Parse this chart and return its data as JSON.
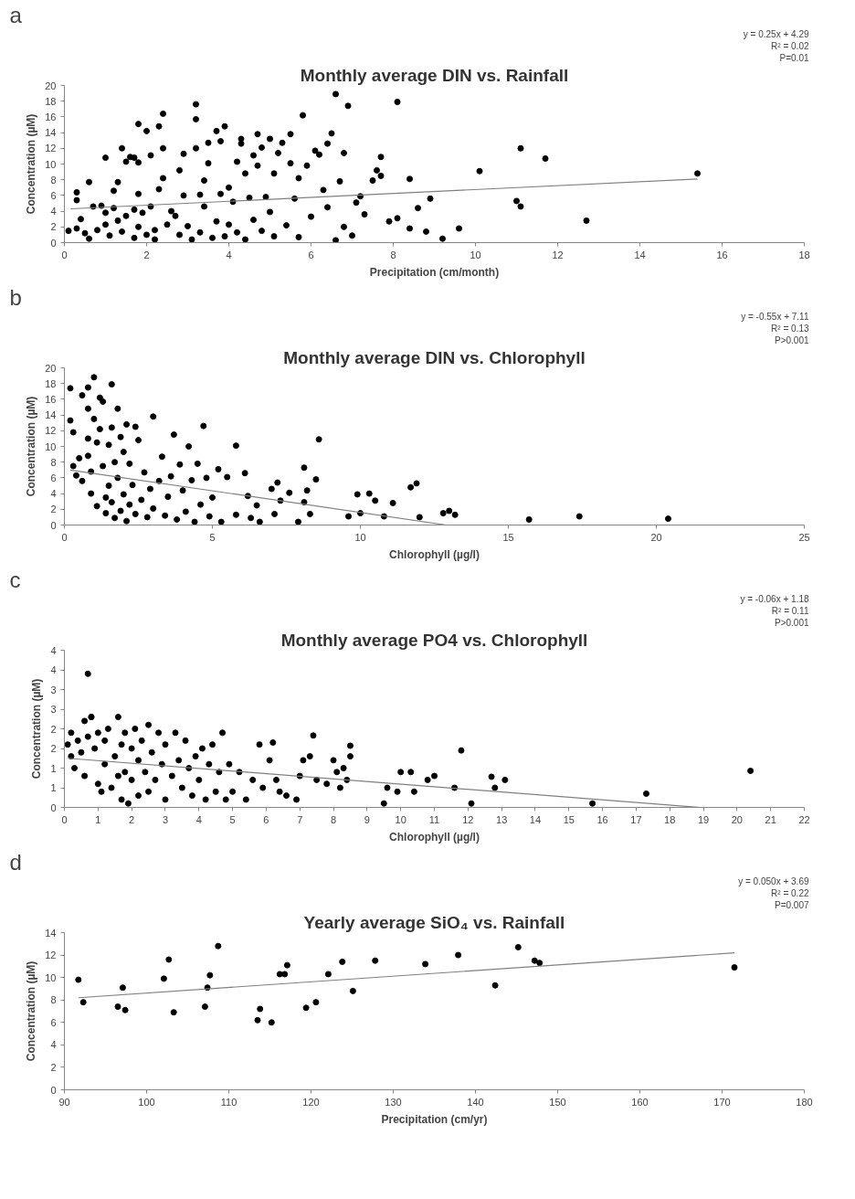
{
  "chart_data": [
    {
      "type": "scatter",
      "title": "Monthly average DIN vs. Rainfall",
      "xlabel": "Precipitation (cm/month)",
      "ylabel": "Concentration (µM)",
      "annotations": [
        "a",
        "y = 0.25x + 4.29",
        "R² = 0.02",
        "P=0.01"
      ],
      "xlim": [
        0,
        18
      ],
      "ylim": [
        0,
        20
      ],
      "xticks": [
        0,
        2,
        4,
        6,
        8,
        10,
        12,
        14,
        16,
        18
      ],
      "yticks": [
        0,
        2,
        4,
        6,
        8,
        10,
        12,
        14,
        16,
        18,
        20
      ],
      "grid": false,
      "series": [
        {
          "type": "scatter",
          "marker": "circle",
          "color": "#000000",
          "x": [
            0.1,
            0.3,
            0.3,
            0.4,
            0.3,
            0.5,
            0.6,
            0.6,
            0.7,
            0.8,
            0.9,
            1.0,
            1.0,
            1.0,
            1.1,
            1.2,
            1.2,
            1.3,
            1.3,
            1.4,
            1.4,
            1.5,
            1.5,
            1.6,
            1.7,
            1.7,
            1.7,
            1.8,
            1.8,
            1.8,
            1.8,
            1.9,
            2.0,
            2.0,
            2.1,
            2.1,
            2.2,
            2.2,
            2.3,
            2.3,
            2.4,
            2.4,
            2.4,
            2.5,
            2.6,
            2.7,
            2.8,
            2.8,
            2.9,
            2.9,
            3.0,
            3.1,
            3.2,
            3.2,
            3.2,
            3.3,
            3.3,
            3.4,
            3.4,
            3.5,
            3.5,
            3.6,
            3.7,
            3.7,
            3.8,
            3.8,
            3.9,
            3.9,
            4.0,
            4.0,
            4.1,
            4.2,
            4.2,
            4.3,
            4.3,
            4.4,
            4.4,
            4.5,
            4.6,
            4.6,
            4.7,
            4.7,
            4.8,
            4.8,
            4.9,
            5.0,
            5.0,
            5.1,
            5.1,
            5.2,
            5.3,
            5.4,
            5.5,
            5.5,
            5.6,
            5.7,
            5.7,
            5.8,
            5.9,
            6.0,
            6.1,
            6.2,
            6.3,
            6.4,
            6.4,
            6.5,
            6.6,
            6.6,
            6.7,
            6.8,
            6.8,
            6.9,
            7.0,
            7.1,
            7.2,
            7.3,
            7.5,
            7.6,
            7.7,
            7.7,
            7.9,
            8.1,
            8.1,
            8.4,
            8.4,
            8.6,
            8.8,
            8.9,
            9.2,
            9.6,
            10.1,
            11.0,
            11.1,
            11.1,
            11.7,
            12.7,
            15.4
          ],
          "values": [
            1.5,
            6.4,
            5.4,
            3.0,
            1.8,
            1.2,
            0.5,
            7.7,
            4.6,
            1.6,
            4.7,
            10.8,
            3.8,
            2.3,
            0.9,
            6.6,
            4.4,
            7.7,
            2.8,
            12.0,
            1.4,
            10.3,
            3.4,
            10.9,
            10.8,
            4.2,
            0.6,
            15.1,
            10.2,
            6.2,
            2.0,
            3.8,
            14.2,
            1.0,
            11.1,
            4.6,
            1.6,
            0.4,
            14.8,
            6.8,
            16.4,
            12.0,
            8.2,
            2.3,
            4.0,
            3.4,
            9.2,
            1.0,
            6.0,
            11.3,
            2.1,
            0.4,
            17.6,
            15.7,
            12.0,
            6.1,
            1.3,
            7.9,
            4.6,
            10.1,
            12.7,
            0.6,
            14.2,
            2.7,
            12.9,
            6.2,
            14.8,
            0.8,
            7.0,
            2.3,
            5.2,
            10.3,
            1.3,
            13.2,
            12.6,
            8.8,
            0.4,
            5.7,
            11.1,
            2.9,
            13.8,
            9.8,
            12.1,
            1.5,
            5.8,
            13.2,
            3.9,
            8.8,
            0.8,
            11.4,
            12.7,
            2.2,
            13.8,
            10.1,
            5.6,
            8.2,
            0.7,
            16.2,
            9.8,
            3.3,
            11.7,
            11.2,
            6.7,
            12.6,
            4.5,
            13.9,
            18.9,
            0.3,
            7.8,
            11.4,
            2.0,
            17.4,
            0.9,
            5.1,
            5.9,
            3.6,
            7.9,
            9.2,
            10.9,
            8.5,
            2.7,
            17.9,
            3.1,
            8.1,
            1.8,
            4.4,
            1.4,
            5.6,
            0.5,
            1.8,
            9.1,
            5.3,
            4.6,
            12.0,
            10.7,
            2.8,
            8.8
          ]
        },
        {
          "type": "line",
          "color": "#808080",
          "x": [
            0.15,
            15.4
          ],
          "values": [
            4.3,
            8.1
          ]
        }
      ]
    },
    {
      "type": "scatter",
      "title": "Monthly average DIN vs. Chlorophyll",
      "xlabel": "Chlorophyll (µg/l)",
      "ylabel": "Concentration (µM)",
      "annotations": [
        "b",
        "y = -0.55x + 7.11",
        "R² = 0.13",
        "P>0.001"
      ],
      "xlim": [
        0,
        25
      ],
      "ylim": [
        0,
        20
      ],
      "xticks": [
        0,
        5,
        10,
        15,
        20,
        25
      ],
      "yticks": [
        0,
        2,
        4,
        6,
        8,
        10,
        12,
        14,
        16,
        18,
        20
      ],
      "grid": false,
      "series": [
        {
          "type": "scatter",
          "marker": "circle",
          "color": "#000000",
          "x": [
            0.2,
            0.2,
            0.3,
            0.3,
            0.4,
            0.5,
            0.6,
            0.6,
            0.8,
            0.8,
            0.8,
            0.8,
            0.9,
            0.9,
            1.0,
            1.0,
            1.1,
            1.1,
            1.2,
            1.2,
            1.3,
            1.3,
            1.4,
            1.4,
            1.5,
            1.5,
            1.6,
            1.6,
            1.6,
            1.7,
            1.7,
            1.8,
            1.8,
            1.9,
            1.9,
            2.0,
            2.0,
            2.1,
            2.1,
            2.2,
            2.2,
            2.3,
            2.4,
            2.4,
            2.5,
            2.6,
            2.7,
            2.8,
            2.9,
            3.0,
            3.0,
            3.2,
            3.3,
            3.4,
            3.5,
            3.6,
            3.7,
            3.8,
            3.9,
            4.0,
            4.1,
            4.2,
            4.3,
            4.4,
            4.5,
            4.6,
            4.7,
            4.8,
            4.9,
            5.0,
            5.2,
            5.3,
            5.5,
            5.8,
            5.8,
            6.1,
            6.2,
            6.3,
            6.5,
            6.6,
            7.0,
            7.1,
            7.2,
            7.3,
            7.6,
            7.9,
            8.1,
            8.1,
            8.2,
            8.3,
            8.5,
            8.6,
            9.6,
            9.9,
            10.0,
            10.3,
            10.5,
            10.8,
            11.1,
            11.7,
            11.9,
            12.0,
            12.8,
            13.0,
            13.2,
            15.7,
            17.4,
            20.4
          ],
          "values": [
            17.4,
            13.3,
            11.8,
            7.5,
            6.3,
            8.5,
            16.5,
            5.6,
            17.5,
            14.8,
            11.0,
            8.8,
            6.8,
            4.0,
            18.8,
            13.5,
            10.5,
            2.4,
            16.2,
            12.2,
            15.7,
            7.5,
            3.5,
            1.5,
            10.2,
            5.0,
            17.9,
            12.4,
            2.9,
            8.0,
            0.9,
            14.8,
            6.0,
            11.2,
            1.8,
            9.3,
            3.9,
            12.8,
            0.5,
            7.8,
            2.6,
            5.1,
            12.5,
            1.4,
            10.8,
            3.2,
            6.7,
            1.0,
            4.6,
            13.8,
            2.1,
            5.6,
            8.7,
            1.2,
            3.6,
            6.2,
            11.5,
            0.7,
            7.7,
            4.4,
            1.7,
            10.0,
            5.7,
            0.4,
            7.8,
            2.6,
            12.6,
            6.0,
            1.1,
            3.5,
            7.1,
            0.4,
            6.1,
            10.1,
            1.3,
            6.6,
            3.7,
            0.9,
            2.5,
            0.4,
            4.6,
            1.4,
            5.4,
            3.1,
            4.1,
            0.4,
            7.3,
            2.9,
            4.4,
            1.4,
            5.8,
            10.9,
            1.1,
            3.9,
            1.5,
            4.0,
            3.1,
            1.1,
            2.8,
            4.8,
            5.3,
            1.0,
            1.5,
            1.8,
            1.3,
            0.7,
            1.1,
            0.8
          ]
        },
        {
          "type": "line",
          "color": "#808080",
          "x": [
            0.2,
            12.9
          ],
          "values": [
            7.0,
            0.0
          ]
        }
      ]
    },
    {
      "type": "scatter",
      "title": "Monthly average PO4 vs. Chlorophyll",
      "xlabel": "Chlorophyll (µg/l)",
      "ylabel": "Concentration (µM)",
      "annotations": [
        "c",
        "y = -0.06x + 1.18",
        "R² = 0.11",
        "P>0.001"
      ],
      "xlim": [
        0,
        22
      ],
      "ylim": [
        0,
        4
      ],
      "xticks": [
        0,
        1,
        2,
        3,
        4,
        5,
        6,
        7,
        8,
        9,
        10,
        11,
        12,
        13,
        14,
        15,
        16,
        17,
        18,
        19,
        20,
        21,
        22
      ],
      "yticks": [
        0,
        {
          "value": 0.5,
          "label": "1"
        },
        1,
        {
          "value": 1.5,
          "label": "2"
        },
        2,
        {
          "value": 2.5,
          "label": "3"
        },
        3,
        {
          "value": 3.5,
          "label": "4"
        },
        4
      ],
      "grid": false,
      "series": [
        {
          "type": "scatter",
          "marker": "circle",
          "color": "#000000",
          "x": [
            0.1,
            0.2,
            0.2,
            0.3,
            0.4,
            0.5,
            0.6,
            0.6,
            0.7,
            0.7,
            0.8,
            0.8,
            0.9,
            1.0,
            1.0,
            1.1,
            1.2,
            1.2,
            1.3,
            1.4,
            1.5,
            1.6,
            1.6,
            1.7,
            1.7,
            1.8,
            1.8,
            1.9,
            2.0,
            2.0,
            2.1,
            2.2,
            2.2,
            2.3,
            2.4,
            2.5,
            2.5,
            2.6,
            2.7,
            2.8,
            2.9,
            3.0,
            3.0,
            3.2,
            3.3,
            3.4,
            3.5,
            3.6,
            3.7,
            3.8,
            3.9,
            4.0,
            4.1,
            4.2,
            4.3,
            4.4,
            4.5,
            4.6,
            4.7,
            4.8,
            4.9,
            5.0,
            5.2,
            5.4,
            5.6,
            5.8,
            5.9,
            6.1,
            6.2,
            6.3,
            6.4,
            6.6,
            6.9,
            7.0,
            7.1,
            7.3,
            7.4,
            7.5,
            7.8,
            8.0,
            8.1,
            8.2,
            8.3,
            8.4,
            8.5,
            8.5,
            9.5,
            9.6,
            9.9,
            10.0,
            10.3,
            10.4,
            10.8,
            11.0,
            11.6,
            11.8,
            12.1,
            12.7,
            12.8,
            13.1,
            15.7,
            17.3,
            20.4
          ],
          "values": [
            1.6,
            1.3,
            1.9,
            1.0,
            1.7,
            1.4,
            2.2,
            0.8,
            3.4,
            1.8,
            2.3,
            2.3,
            1.5,
            1.9,
            0.6,
            0.4,
            1.7,
            1.1,
            2.0,
            0.5,
            1.3,
            2.3,
            0.8,
            1.6,
            0.2,
            1.9,
            0.9,
            0.1,
            1.5,
            0.7,
            2.0,
            1.2,
            0.3,
            1.7,
            0.9,
            2.1,
            0.4,
            1.4,
            0.7,
            1.9,
            1.1,
            0.2,
            1.6,
            0.8,
            1.9,
            1.2,
            0.5,
            1.7,
            1.0,
            0.3,
            1.3,
            0.7,
            1.5,
            0.2,
            1.1,
            1.6,
            0.4,
            0.9,
            1.9,
            0.2,
            1.1,
            0.4,
            0.9,
            0.2,
            0.7,
            1.6,
            0.5,
            1.2,
            1.65,
            0.7,
            0.4,
            0.3,
            0.2,
            0.8,
            1.2,
            1.3,
            1.83,
            0.7,
            0.6,
            1.2,
            0.9,
            0.5,
            1.0,
            0.7,
            1.57,
            1.3,
            0.1,
            0.5,
            0.4,
            0.9,
            0.9,
            0.4,
            0.7,
            0.8,
            0.5,
            1.45,
            0.1,
            0.78,
            0.5,
            0.7,
            0.1,
            0.35,
            0.93
          ]
        },
        {
          "type": "line",
          "color": "#808080",
          "x": [
            0.1,
            18.9
          ],
          "values": [
            1.25,
            0.0
          ]
        }
      ]
    },
    {
      "type": "scatter",
      "title": "Yearly average SiO₄ vs. Rainfall",
      "xlabel": "Precipitation (cm/yr)",
      "ylabel": "Concentration (µM)",
      "annotations": [
        "d",
        "y = 0.050x + 3.69",
        "R² = 0.22",
        "P=0.007"
      ],
      "xlim": [
        90,
        180
      ],
      "ylim": [
        0,
        14
      ],
      "xticks": [
        90,
        100,
        110,
        120,
        130,
        140,
        150,
        160,
        170,
        180
      ],
      "yticks": [
        0,
        2,
        4,
        6,
        8,
        10,
        12,
        14
      ],
      "grid": false,
      "series": [
        {
          "type": "scatter",
          "marker": "circle",
          "color": "#000000",
          "x": [
            91.7,
            92.3,
            96.5,
            97.1,
            97.4,
            102.1,
            102.7,
            103.3,
            107.1,
            107.4,
            107.7,
            108.7,
            113.5,
            113.8,
            115.2,
            116.2,
            116.8,
            117.1,
            119.4,
            120.6,
            122.1,
            123.8,
            125.1,
            127.8,
            133.9,
            137.9,
            142.4,
            145.2,
            147.2,
            147.8,
            171.5
          ],
          "values": [
            9.8,
            7.8,
            7.4,
            9.1,
            7.1,
            9.9,
            11.6,
            6.9,
            7.4,
            9.1,
            10.2,
            12.8,
            6.2,
            7.2,
            6.0,
            10.3,
            10.3,
            11.1,
            7.3,
            7.8,
            10.3,
            11.4,
            8.8,
            11.5,
            11.2,
            12.0,
            9.3,
            12.7,
            11.5,
            11.3,
            10.9
          ]
        },
        {
          "type": "line",
          "color": "#808080",
          "x": [
            91.7,
            171.5
          ],
          "values": [
            8.2,
            12.2
          ]
        }
      ]
    }
  ]
}
